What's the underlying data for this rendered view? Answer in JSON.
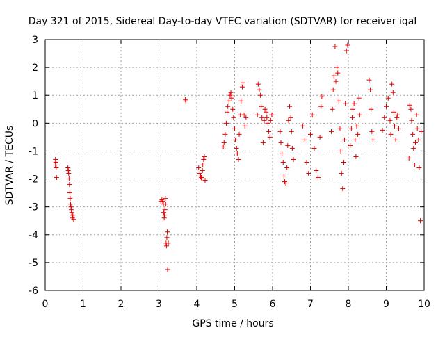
{
  "chart_data": {
    "type": "scatter",
    "title": "Day 321 of 2015, Sidereal Day-to-day VTEC variation (SDTVAR) for receiver iqal",
    "xlabel": "GPS time / hours",
    "ylabel": "SDTVAR / TECUs",
    "xlim": [
      0,
      10
    ],
    "ylim": [
      -6,
      3
    ],
    "xticks": [
      0,
      1,
      2,
      3,
      4,
      5,
      6,
      7,
      8,
      9,
      10
    ],
    "yticks": [
      3,
      2,
      1,
      0,
      -1,
      -2,
      -3,
      -4,
      -5,
      -6
    ],
    "grid": true,
    "marker": "+",
    "color": "#e00000",
    "series": [
      {
        "name": "SDTVAR",
        "x": [
          0.27,
          0.27,
          0.28,
          0.29,
          0.3,
          0.6,
          0.61,
          0.62,
          0.63,
          0.64,
          0.65,
          0.66,
          0.67,
          0.68,
          0.69,
          0.7,
          0.71,
          0.72,
          0.73,
          0.75,
          3.05,
          3.08,
          3.1,
          3.12,
          3.13,
          3.14,
          3.15,
          3.16,
          3.17,
          3.18,
          3.19,
          3.2,
          3.21,
          3.22,
          3.23,
          3.25,
          3.7,
          3.71,
          4.05,
          4.08,
          4.1,
          4.12,
          4.13,
          4.15,
          4.16,
          4.18,
          4.2,
          4.22,
          4.7,
          4.72,
          4.75,
          4.78,
          4.8,
          4.82,
          4.85,
          4.88,
          4.9,
          4.92,
          4.95,
          4.97,
          5.0,
          5.02,
          5.05,
          5.07,
          5.1,
          5.12,
          5.15,
          5.17,
          5.2,
          5.22,
          5.25,
          5.27,
          5.3,
          5.6,
          5.62,
          5.65,
          5.68,
          5.7,
          5.72,
          5.75,
          5.78,
          5.8,
          5.83,
          5.85,
          5.88,
          5.9,
          5.93,
          5.95,
          5.98,
          6.2,
          6.22,
          6.25,
          6.28,
          6.3,
          6.32,
          6.35,
          6.38,
          6.4,
          6.42,
          6.45,
          6.48,
          6.5,
          6.52,
          6.55,
          6.8,
          6.85,
          6.9,
          6.95,
          7.0,
          7.05,
          7.1,
          7.15,
          7.2,
          7.25,
          7.28,
          7.3,
          7.55,
          7.58,
          7.6,
          7.62,
          7.65,
          7.67,
          7.7,
          7.72,
          7.75,
          7.78,
          7.8,
          7.82,
          7.85,
          7.88,
          7.9,
          7.92,
          7.95,
          7.98,
          8.05,
          8.08,
          8.1,
          8.12,
          8.15,
          8.18,
          8.2,
          8.22,
          8.25,
          8.28,
          8.3,
          8.55,
          8.58,
          8.6,
          8.62,
          8.65,
          8.9,
          8.95,
          9.0,
          9.05,
          9.1,
          9.12,
          9.15,
          9.18,
          9.2,
          9.22,
          9.25,
          9.28,
          9.3,
          9.33,
          9.6,
          9.62,
          9.65,
          9.67,
          9.7,
          9.72,
          9.75,
          9.77,
          9.8,
          9.82,
          9.85,
          9.87,
          9.9,
          9.92
        ],
        "y": [
          -1.3,
          -1.5,
          -1.4,
          -1.6,
          -1.95,
          -1.6,
          -1.7,
          -1.8,
          -2.0,
          -2.2,
          -2.5,
          -2.7,
          -2.9,
          -3.0,
          -3.1,
          -3.2,
          -3.3,
          -3.4,
          -3.3,
          -3.45,
          -2.8,
          -2.75,
          -2.8,
          -2.9,
          -3.2,
          -3.4,
          -3.3,
          -3.1,
          -2.7,
          -2.9,
          -4.3,
          -4.4,
          -4.1,
          -3.9,
          -5.25,
          -4.3,
          0.85,
          0.8,
          -1.6,
          -1.8,
          -1.9,
          -1.95,
          -2.0,
          -1.7,
          -1.5,
          -1.3,
          -1.2,
          -2.05,
          -0.85,
          -0.7,
          -0.4,
          0.0,
          0.4,
          0.6,
          0.8,
          1.0,
          1.1,
          0.9,
          0.5,
          0.2,
          -0.2,
          -0.6,
          -0.9,
          -1.1,
          -1.3,
          -0.4,
          0.3,
          0.8,
          1.3,
          1.45,
          0.3,
          -0.1,
          0.2,
          0.3,
          1.4,
          1.2,
          1.0,
          0.6,
          0.2,
          -0.7,
          0.1,
          0.5,
          0.4,
          0.2,
          0.0,
          -0.3,
          -0.5,
          0.1,
          0.3,
          -0.3,
          -0.7,
          -1.1,
          -1.4,
          -1.9,
          -2.1,
          -2.15,
          -1.6,
          -0.8,
          0.1,
          0.6,
          0.2,
          -0.3,
          -0.9,
          -1.3,
          -0.1,
          -0.6,
          -1.4,
          -1.8,
          -0.4,
          0.3,
          -0.9,
          -1.7,
          -1.95,
          -0.5,
          0.6,
          0.95,
          -0.3,
          0.5,
          1.2,
          1.7,
          2.75,
          1.5,
          2.0,
          1.8,
          0.8,
          -0.2,
          -1.0,
          -1.8,
          -2.35,
          -1.4,
          -0.6,
          0.7,
          2.6,
          2.8,
          -0.8,
          -0.2,
          0.2,
          0.5,
          0.7,
          -0.6,
          -1.2,
          -0.1,
          -0.4,
          0.9,
          0.3,
          1.55,
          1.2,
          0.5,
          -0.3,
          -0.6,
          -0.25,
          0.2,
          0.6,
          0.9,
          0.1,
          -0.4,
          1.4,
          1.1,
          0.4,
          -0.1,
          -0.6,
          0.2,
          0.3,
          -0.2,
          -1.25,
          0.65,
          0.5,
          0.1,
          -0.4,
          -0.9,
          -1.5,
          -0.7,
          0.3,
          -0.2,
          -0.6,
          -1.6,
          -3.5,
          -0.3
        ]
      }
    ]
  }
}
